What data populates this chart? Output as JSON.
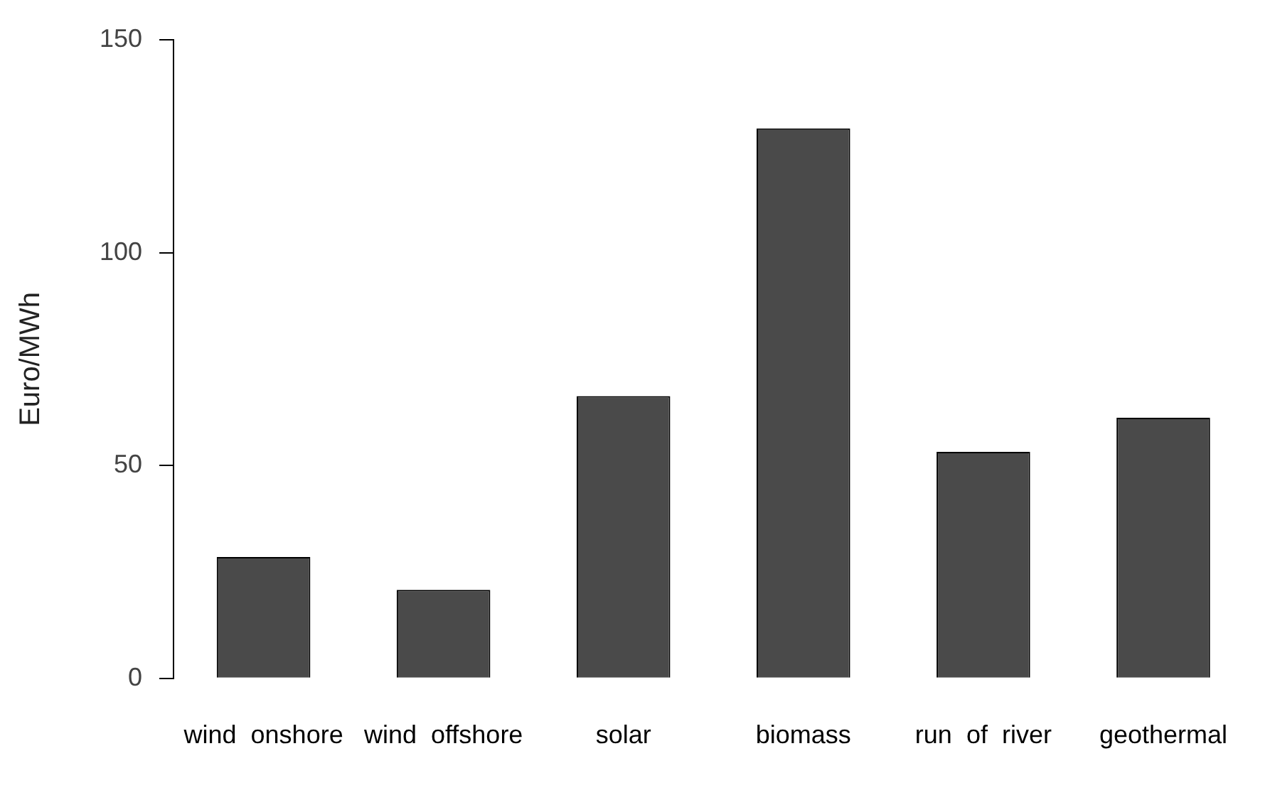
{
  "chart_data": {
    "type": "bar",
    "ylabel": "Euro/MWh",
    "categories": [
      "wind  onshore",
      "wind  offshore",
      "solar",
      "biomass",
      "run  of  river",
      "geothermal"
    ],
    "values": [
      28.5,
      20.8,
      66.3,
      129.2,
      53.2,
      61.2
    ],
    "color": "#4a4a4a",
    "ylim": [
      0,
      150
    ],
    "yticks": [
      0,
      50,
      100,
      150
    ],
    "grid": false,
    "legend": false
  }
}
